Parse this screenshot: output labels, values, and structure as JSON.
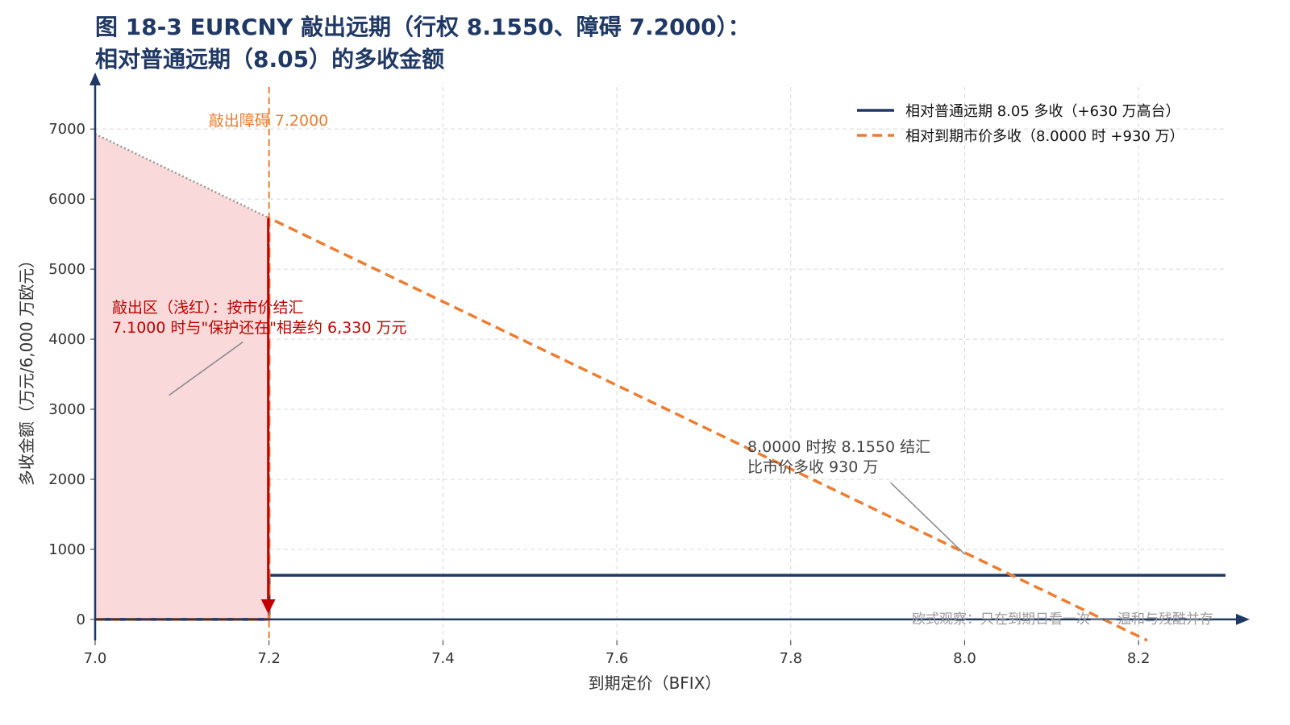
{
  "chart_data": {
    "type": "line",
    "title_line1": "图 18-3 EURCNY 敲出远期（行权 8.1550、障碍 7.2000）：",
    "title_line2": "相对普通远期（8.05）的多收金额",
    "xlabel": "到期定价（BFIX）",
    "ylabel": "多收金额（万元/6,000 万欧元）",
    "xlim": [
      7.0,
      8.3
    ],
    "ylim": [
      -300,
      7600
    ],
    "x_ticks": [
      7.0,
      7.2,
      7.4,
      7.6,
      7.8,
      8.0,
      8.2
    ],
    "x_tick_labels": [
      "7.0",
      "7.2",
      "7.4",
      "7.6",
      "7.8",
      "8.0",
      "8.2"
    ],
    "y_ticks": [
      0,
      1000,
      2000,
      3000,
      4000,
      5000,
      6000,
      7000
    ],
    "y_tick_labels": [
      "0",
      "1000",
      "2000",
      "3000",
      "4000",
      "5000",
      "6000",
      "7000"
    ],
    "grid": true,
    "legend_position": "top-right",
    "series": [
      {
        "name": "相对普通远期 8.05 多收（+630 万高台）",
        "style": "solid",
        "color": "#1f3864",
        "points": [
          [
            7.0,
            0
          ],
          [
            7.2,
            0
          ],
          [
            7.2,
            630
          ],
          [
            8.3,
            630
          ]
        ]
      },
      {
        "name": "相对到期市价多收（8.0000 时 +930 万）",
        "style": "dashed",
        "color": "#ed7d31",
        "points": [
          [
            7.0,
            0
          ],
          [
            7.2,
            0
          ],
          [
            7.2,
            5730
          ],
          [
            8.21,
            -300
          ]
        ]
      }
    ],
    "knockout_region": {
      "x_from": 7.0,
      "x_to": 7.2,
      "color": "#f9d9d9"
    },
    "knockout_upper_line": {
      "points": [
        [
          7.0,
          6930
        ],
        [
          7.2,
          5730
        ]
      ],
      "color": "#999999"
    },
    "barrier": {
      "x": 7.2,
      "label": "敲出障碍 7.2000",
      "color": "#ed7d31"
    },
    "drop_arrow": {
      "x": 7.2,
      "from": 5730,
      "to": 0,
      "color": "#c00000"
    },
    "annotations": [
      {
        "id": "knockout",
        "line1": "敲出区（浅红）：按市价结汇",
        "line2": "7.1000 时与\"保护还在\"相差约 6,330 万元",
        "color": "#c00000",
        "pointer_from": [
          7.085,
          3200
        ],
        "pointer_to": [
          7.17,
          3960
        ]
      },
      {
        "id": "at8",
        "line1": "8.0000 时按 8.1550 结汇",
        "line2": "比市价多收 930 万",
        "color": "#444444",
        "pointer_from": [
          8.0,
          930
        ],
        "pointer_to": [
          7.915,
          1950
        ]
      }
    ],
    "watermark": "欧式观察：只在到期日看一次——温和与残酷并存"
  }
}
